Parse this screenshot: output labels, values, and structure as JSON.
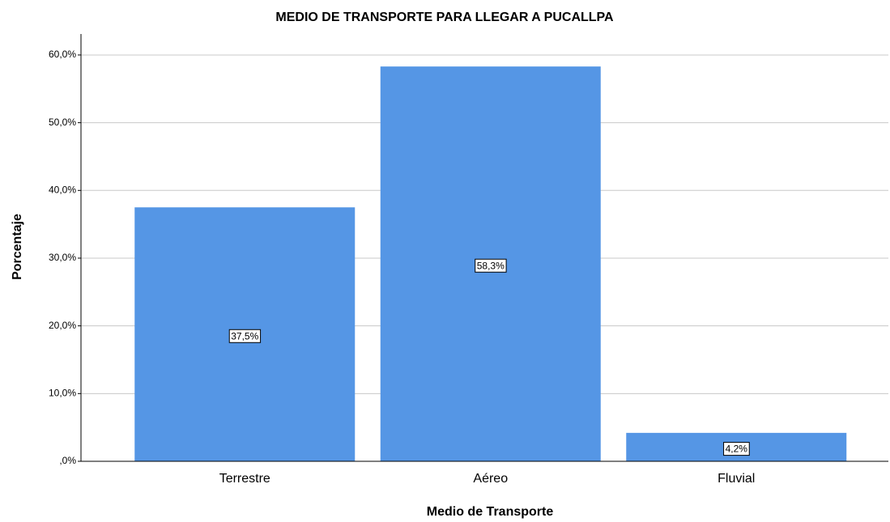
{
  "chart_data": {
    "type": "bar",
    "title": "MEDIO DE TRANSPORTE PARA LLEGAR A PUCALLPA",
    "x_label": "Medio de Transporte",
    "y_label": "Porcentaje",
    "categories": [
      "Terrestre",
      "Aéreo",
      "Fluvial"
    ],
    "values": [
      37.5,
      58.3,
      4.2
    ],
    "value_labels": [
      "37,5%",
      "58,3%",
      "4,2%"
    ],
    "color": "#5596e5",
    "ylim": [
      0,
      63.1
    ],
    "yticks": [
      {
        "value": 0,
        "label": ",0%"
      },
      {
        "value": 10,
        "label": "10,0%"
      },
      {
        "value": 20,
        "label": "20,0%"
      },
      {
        "value": 30,
        "label": "30,0%"
      },
      {
        "value": 40,
        "label": "40,0%"
      },
      {
        "value": 50,
        "label": "50,0%"
      },
      {
        "value": 60,
        "label": "60,0%"
      }
    ],
    "grid": true
  }
}
